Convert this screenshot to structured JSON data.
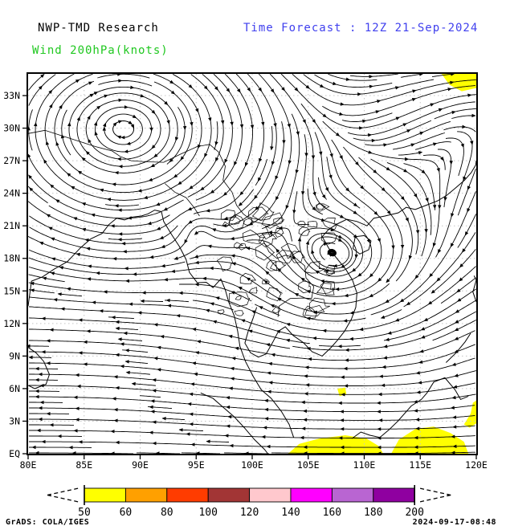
{
  "header": {
    "title": "NWP-TMD Research",
    "forecast_label": "Time Forecast : 12Z 21-Sep-2024",
    "variable_label": "Wind 200hPa(knots)"
  },
  "footer": {
    "credit": "GrADS: COLA/IGES",
    "generated": "2024-09-17-08:48"
  },
  "colors": {
    "title_text": "#000000",
    "forecast_text": "#4040ee",
    "variable_text": "#20c820",
    "grid": "#c4c4c4",
    "stream": "#000000",
    "shade": "#ffff00"
  },
  "chart_data": {
    "type": "streamline-map",
    "title": "Wind 200hPa(knots)",
    "subtitle": "NWP-TMD Research",
    "forecast_time": "12Z 21-Sep-2024",
    "level_hpa": 200,
    "units": "knots",
    "lon_range": [
      80,
      120
    ],
    "lat_range": [
      0,
      35
    ],
    "grid": "dotted",
    "x_ticks": [
      {
        "v": 80,
        "label": "80E"
      },
      {
        "v": 85,
        "label": "85E"
      },
      {
        "v": 90,
        "label": "90E"
      },
      {
        "v": 95,
        "label": "95E"
      },
      {
        "v": 100,
        "label": "100E"
      },
      {
        "v": 105,
        "label": "105E"
      },
      {
        "v": 110,
        "label": "110E"
      },
      {
        "v": 115,
        "label": "115E"
      },
      {
        "v": 120,
        "label": "120E"
      }
    ],
    "y_ticks": [
      {
        "v": 0,
        "label": "EQ"
      },
      {
        "v": 3,
        "label": "3N"
      },
      {
        "v": 6,
        "label": "6N"
      },
      {
        "v": 9,
        "label": "9N"
      },
      {
        "v": 12,
        "label": "12N"
      },
      {
        "v": 15,
        "label": "15N"
      },
      {
        "v": 18,
        "label": "18N"
      },
      {
        "v": 21,
        "label": "21N"
      },
      {
        "v": 24,
        "label": "24N"
      },
      {
        "v": 27,
        "label": "27N"
      },
      {
        "v": 30,
        "label": "30N"
      },
      {
        "v": 33,
        "label": "33N"
      }
    ],
    "legend": {
      "levels": [
        "50",
        "60",
        "80",
        "100",
        "120",
        "140",
        "160",
        "180",
        "200"
      ],
      "colors": [
        "#ffff00",
        "#ffa000",
        "#ff3c00",
        "#a23535",
        "#ffc8cd",
        "#ff00ff",
        "#b965d2",
        "#8f00a0"
      ],
      "out_of_range_style": "dashed-open-ends"
    },
    "shaded_regions": [
      {
        "level": 50,
        "polygon": [
          [
            116.9,
            35
          ],
          [
            120,
            35
          ],
          [
            120,
            33.7
          ],
          [
            118.7,
            33.4
          ],
          [
            117.6,
            34.0
          ]
        ]
      },
      {
        "level": 50,
        "polygon": [
          [
            107.6,
            6.0
          ],
          [
            108.3,
            6.1
          ],
          [
            108.4,
            5.5
          ],
          [
            107.8,
            5.3
          ]
        ]
      },
      {
        "level": 50,
        "polygon": [
          [
            103.2,
            0
          ],
          [
            104.2,
            0.9
          ],
          [
            106.0,
            1.4
          ],
          [
            108.3,
            1.7
          ],
          [
            110.2,
            1.4
          ],
          [
            111.3,
            0.7
          ],
          [
            111.7,
            0
          ]
        ]
      },
      {
        "level": 50,
        "polygon": [
          [
            112.4,
            0
          ],
          [
            113.1,
            1.3
          ],
          [
            114.6,
            2.3
          ],
          [
            116.2,
            2.5
          ],
          [
            117.7,
            1.9
          ],
          [
            118.9,
            1.1
          ],
          [
            119.3,
            0
          ]
        ]
      },
      {
        "level": 50,
        "polygon": [
          [
            118.9,
            2.7
          ],
          [
            119.5,
            3.7
          ],
          [
            119.7,
            4.7
          ],
          [
            120,
            4.9
          ],
          [
            120,
            2.8
          ],
          [
            119.4,
            2.4
          ]
        ]
      }
    ],
    "flow_features": [
      {
        "type": "vortex",
        "name": "anticyclone-tibetan-high",
        "lon": 88.5,
        "lat": 30.0,
        "radius": 7.5,
        "strength": 1.6,
        "ax": 1.4
      },
      {
        "type": "vortex",
        "name": "cyclone-near-myanmar",
        "lon": 94.8,
        "lat": 21.4,
        "radius": 2.1,
        "strength": -1.8,
        "ax": 1
      },
      {
        "type": "vortex",
        "name": "ridge-indochina",
        "lon": 107.5,
        "lat": 17.5,
        "radius": 6.0,
        "strength": 0.3,
        "ax": 1.2
      },
      {
        "type": "zonal",
        "name": "tropical-easterlies",
        "lat": 5.0,
        "width": 11.0,
        "u": -1.0,
        "v": 0.0
      },
      {
        "type": "zonal",
        "name": "northern-westerlies",
        "lat": 35.5,
        "width": 4.5,
        "u": 0.75,
        "v": 0.0
      },
      {
        "type": "patch",
        "name": "northeast-outflow-jet",
        "lon": 112,
        "lat": 31.5,
        "slon": 8,
        "slat": 3.5,
        "u": 0.85,
        "v": 0.6
      },
      {
        "type": "patch",
        "name": "east-edge-northerlies",
        "lon": 120.5,
        "lat": 25,
        "slon": 3,
        "slat": 6,
        "u": -0.3,
        "v": -0.75
      },
      {
        "type": "patch",
        "name": "northeasterlies-scs",
        "lon": 119,
        "lat": 12,
        "slon": 4.5,
        "slat": 6.5,
        "u": -0.5,
        "v": -0.55
      },
      {
        "type": "patch",
        "name": "equatorial-tilt",
        "lon": 95,
        "lat": 8,
        "slon": 9,
        "slat": 6,
        "u": 0,
        "v": 0.12
      }
    ],
    "map_layers": {
      "coastlines": [
        [
          [
            80,
            13.6
          ],
          [
            80.3,
            15.9
          ],
          [
            81.3,
            16.3
          ],
          [
            82.3,
            17.0
          ],
          [
            83.5,
            17.7
          ],
          [
            84.7,
            19.0
          ],
          [
            85.6,
            19.8
          ],
          [
            86.6,
            20.3
          ],
          [
            87.2,
            21.1
          ],
          [
            87.9,
            21.7
          ]
        ],
        [
          [
            87.9,
            21.7
          ],
          [
            88.6,
            21.55
          ],
          [
            89.3,
            21.8
          ],
          [
            90.1,
            21.9
          ],
          [
            90.7,
            22.1
          ],
          [
            91.3,
            22.45
          ],
          [
            91.9,
            22.3
          ],
          [
            92.1,
            21.4
          ],
          [
            92.8,
            20.2
          ],
          [
            93.5,
            19.1
          ],
          [
            94.1,
            17.9
          ],
          [
            94.4,
            16.7
          ],
          [
            95.1,
            15.75
          ],
          [
            95.9,
            15.8
          ],
          [
            96.5,
            15.3
          ],
          [
            97.2,
            16.1
          ],
          [
            97.6,
            15.1
          ],
          [
            97.9,
            14.0
          ],
          [
            98.4,
            12.7
          ],
          [
            98.7,
            11.3
          ],
          [
            98.9,
            9.9
          ],
          [
            99.4,
            8.5
          ],
          [
            100.1,
            7.1
          ],
          [
            100.8,
            5.9
          ],
          [
            101.7,
            5.1
          ],
          [
            102.6,
            3.9
          ],
          [
            103.3,
            2.7
          ],
          [
            103.7,
            1.5
          ]
        ],
        [
          [
            100.4,
            13.5
          ],
          [
            100.05,
            12.4
          ],
          [
            99.65,
            11.3
          ],
          [
            99.35,
            10.2
          ],
          [
            99.85,
            9.3
          ],
          [
            100.55,
            8.9
          ],
          [
            101.25,
            9.2
          ],
          [
            101.85,
            10.3
          ],
          [
            102.35,
            11.3
          ],
          [
            102.95,
            11.7
          ],
          [
            103.65,
            10.9
          ],
          [
            104.55,
            10.25
          ],
          [
            105.35,
            9.4
          ],
          [
            106.25,
            9.0
          ],
          [
            107.05,
            9.8
          ],
          [
            107.65,
            10.5
          ],
          [
            108.25,
            11.3
          ],
          [
            108.85,
            12.4
          ],
          [
            109.25,
            13.5
          ],
          [
            109.35,
            14.8
          ],
          [
            108.95,
            16.0
          ],
          [
            108.35,
            17.0
          ],
          [
            107.55,
            18.0
          ],
          [
            106.85,
            18.9
          ],
          [
            106.25,
            20.0
          ],
          [
            106.85,
            20.7
          ],
          [
            107.65,
            21.2
          ],
          [
            108.45,
            21.6
          ]
        ],
        [
          [
            108.45,
            21.6
          ],
          [
            109.35,
            21.4
          ],
          [
            110.25,
            21.0
          ],
          [
            110.85,
            21.7
          ],
          [
            111.85,
            21.9
          ],
          [
            113.05,
            22.2
          ],
          [
            113.75,
            22.7
          ],
          [
            114.55,
            22.5
          ],
          [
            115.55,
            22.9
          ],
          [
            116.55,
            23.3
          ],
          [
            117.35,
            23.8
          ],
          [
            118.05,
            24.4
          ],
          [
            118.95,
            25.2
          ],
          [
            119.55,
            25.9
          ],
          [
            119.95,
            26.6
          ],
          [
            120,
            27.0
          ]
        ],
        [
          [
            109.2,
            20.0
          ],
          [
            110.0,
            20.1
          ],
          [
            110.6,
            19.6
          ],
          [
            110.4,
            18.8
          ],
          [
            109.6,
            18.4
          ],
          [
            109.0,
            18.9
          ],
          [
            109.2,
            20.0
          ]
        ],
        [
          [
            80,
            9.8
          ],
          [
            80.7,
            9.3
          ],
          [
            81.4,
            8.5
          ],
          [
            81.9,
            7.3
          ],
          [
            81.6,
            6.4
          ],
          [
            80.6,
            6.0
          ],
          [
            80,
            6.3
          ]
        ],
        [
          [
            95.4,
            5.6
          ],
          [
            96.5,
            5.1
          ],
          [
            97.5,
            4.2
          ],
          [
            98.4,
            3.4
          ],
          [
            99.3,
            2.4
          ],
          [
            100.2,
            1.3
          ],
          [
            101.1,
            0.4
          ],
          [
            101.4,
            0
          ]
        ],
        [
          [
            108.9,
            1.4
          ],
          [
            109.7,
            2.0
          ],
          [
            110.5,
            1.7
          ],
          [
            111.4,
            1.5
          ],
          [
            112.2,
            2.2
          ],
          [
            113.0,
            3.0
          ],
          [
            114.2,
            4.4
          ],
          [
            115.1,
            5.0
          ],
          [
            115.6,
            5.6
          ],
          [
            116.2,
            6.6
          ],
          [
            117.2,
            7.0
          ],
          [
            118.1,
            5.9
          ],
          [
            118.6,
            5.0
          ],
          [
            119.3,
            5.3
          ]
        ],
        [
          [
            117.3,
            8.4
          ],
          [
            118.2,
            9.3
          ],
          [
            119.0,
            10.3
          ],
          [
            119.5,
            11.1
          ]
        ],
        [
          [
            119.8,
            16.4
          ],
          [
            120,
            16.0
          ],
          [
            119.7,
            14.9
          ],
          [
            120,
            14.0
          ]
        ]
      ],
      "borders": [
        [
          [
            80,
            29.5
          ],
          [
            81.5,
            29.8
          ],
          [
            83.0,
            29.3
          ],
          [
            84.5,
            28.8
          ],
          [
            86.0,
            28.3
          ],
          [
            87.5,
            27.9
          ],
          [
            88.2,
            27.4
          ],
          [
            89.2,
            27.0
          ],
          [
            90.6,
            26.9
          ],
          [
            92.1,
            26.85
          ],
          [
            93.6,
            27.6
          ],
          [
            95.1,
            28.3
          ],
          [
            96.2,
            28.5
          ],
          [
            97.0,
            27.8
          ]
        ],
        [
          [
            92.2,
            24.9
          ],
          [
            93.1,
            24.1
          ],
          [
            94.1,
            23.6
          ],
          [
            94.8,
            22.7
          ],
          [
            95.3,
            21.9
          ]
        ],
        [
          [
            97.0,
            27.8
          ],
          [
            97.6,
            26.5
          ],
          [
            97.4,
            25.2
          ],
          [
            98.2,
            24.1
          ],
          [
            98.6,
            22.9
          ],
          [
            99.2,
            22.1
          ],
          [
            100.1,
            21.4
          ],
          [
            100.9,
            21.2
          ],
          [
            101.6,
            21.1
          ]
        ],
        [
          [
            101.0,
            19.6
          ],
          [
            101.5,
            18.6
          ],
          [
            102.2,
            18.0
          ],
          [
            103.0,
            18.3
          ],
          [
            103.9,
            18.0
          ],
          [
            104.7,
            17.3
          ],
          [
            104.8,
            16.2
          ],
          [
            105.5,
            15.4
          ],
          [
            105.3,
            14.3
          ],
          [
            104.5,
            14.35
          ],
          [
            103.4,
            14.3
          ],
          [
            102.4,
            13.6
          ],
          [
            102.3,
            12.6
          ]
        ]
      ],
      "detail_texture": {
        "lon": [
          97.2,
          107.0
        ],
        "lat": [
          12.6,
          23.0
        ],
        "count": 48,
        "seed": 42
      }
    }
  }
}
